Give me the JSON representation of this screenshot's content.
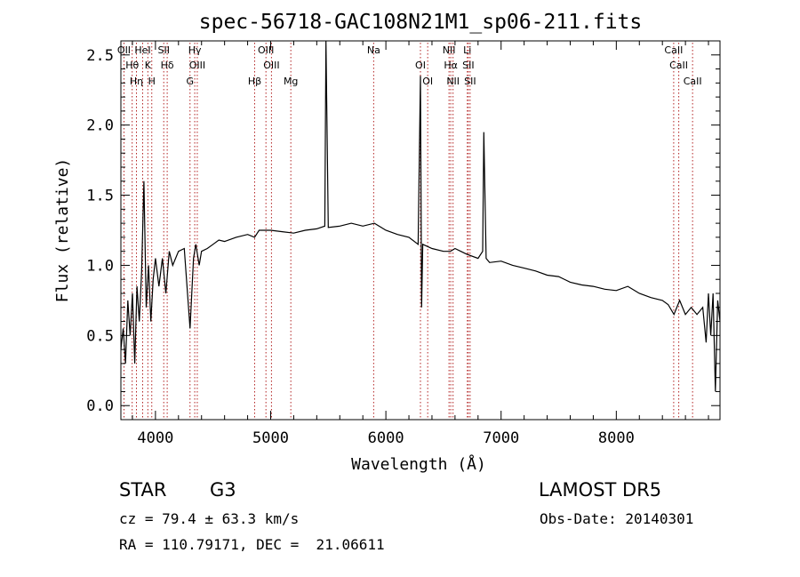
{
  "chart_data": {
    "type": "line",
    "title": "spec-56718-GAC108N21M1_sp06-211.fits",
    "xlabel": "Wavelength (Å)",
    "ylabel": "Flux (relative)",
    "xlim": [
      3700,
      8900
    ],
    "ylim": [
      -0.1,
      2.6
    ],
    "x_ticks": [
      4000,
      5000,
      6000,
      7000,
      8000
    ],
    "x_tick_labels": [
      "4000",
      "5000",
      "6000",
      "7000",
      "8000"
    ],
    "y_ticks": [
      0.0,
      0.5,
      1.0,
      1.5,
      2.0,
      2.5
    ],
    "y_tick_labels": [
      "0.0",
      "0.5",
      "1.0",
      "1.5",
      "2.0",
      "2.5"
    ],
    "grid": false,
    "line_color": "#000000",
    "marker_color": "#b22222",
    "series": [
      {
        "x": [
          3700,
          3720,
          3740,
          3760,
          3780,
          3800,
          3820,
          3840,
          3860,
          3880,
          3900,
          3920,
          3940,
          3960,
          3980,
          4000,
          4030,
          4060,
          4090,
          4120,
          4150,
          4200,
          4250,
          4300,
          4330,
          4350,
          4380,
          4400,
          4450,
          4500,
          4550,
          4600,
          4700,
          4800,
          4860,
          4900,
          5000,
          5100,
          5200,
          5300,
          5400,
          5470,
          5480,
          5500,
          5600,
          5700,
          5800,
          5900,
          6000,
          6100,
          6200,
          6280,
          6300,
          6310,
          6320,
          6400,
          6500,
          6560,
          6600,
          6650,
          6700,
          6800,
          6840,
          6850,
          6870,
          6900,
          7000,
          7100,
          7200,
          7300,
          7400,
          7500,
          7600,
          7700,
          7800,
          7900,
          8000,
          8100,
          8200,
          8300,
          8400,
          8450,
          8500,
          8550,
          8600,
          8650,
          8700,
          8750,
          8780,
          8800,
          8820,
          8840,
          8860,
          8880,
          8900
        ],
        "y": [
          0.4,
          0.55,
          0.3,
          0.75,
          0.5,
          0.8,
          0.3,
          0.85,
          0.6,
          0.95,
          1.6,
          0.7,
          1.0,
          0.6,
          0.9,
          1.05,
          0.85,
          1.05,
          0.8,
          1.1,
          1.0,
          1.1,
          1.12,
          0.55,
          1.05,
          1.15,
          1.0,
          1.1,
          1.12,
          1.15,
          1.18,
          1.17,
          1.2,
          1.22,
          1.2,
          1.25,
          1.25,
          1.24,
          1.23,
          1.25,
          1.26,
          1.28,
          2.6,
          1.27,
          1.28,
          1.3,
          1.28,
          1.3,
          1.25,
          1.22,
          1.2,
          1.15,
          2.35,
          0.7,
          1.15,
          1.12,
          1.1,
          1.1,
          1.12,
          1.1,
          1.08,
          1.05,
          1.1,
          1.95,
          1.05,
          1.02,
          1.03,
          1.0,
          0.98,
          0.96,
          0.93,
          0.92,
          0.88,
          0.86,
          0.85,
          0.83,
          0.82,
          0.85,
          0.8,
          0.77,
          0.75,
          0.72,
          0.65,
          0.75,
          0.65,
          0.7,
          0.65,
          0.7,
          0.45,
          0.8,
          0.5,
          0.8,
          0.1,
          0.75,
          0.6
        ]
      }
    ],
    "line_markers": [
      {
        "x": 3727,
        "label": "OII"
      },
      {
        "x": 3798,
        "label": "Hθ"
      },
      {
        "x": 3835,
        "label": "Hη"
      },
      {
        "x": 3889,
        "label": "HeI"
      },
      {
        "x": 3934,
        "label": "K"
      },
      {
        "x": 3968,
        "label": "H"
      },
      {
        "x": 4072,
        "label": "SII"
      },
      {
        "x": 4102,
        "label": "Hδ"
      },
      {
        "x": 4300,
        "label": "G"
      },
      {
        "x": 4341,
        "label": "Hγ"
      },
      {
        "x": 4363,
        "label": "OIII"
      },
      {
        "x": 4861,
        "label": "Hβ"
      },
      {
        "x": 4959,
        "label": "OIII"
      },
      {
        "x": 5007,
        "label": "OIII"
      },
      {
        "x": 5175,
        "label": "Mg"
      },
      {
        "x": 5894,
        "label": "Na"
      },
      {
        "x": 6300,
        "label": "OI"
      },
      {
        "x": 6363,
        "label": "OI"
      },
      {
        "x": 6548,
        "label": "NII"
      },
      {
        "x": 6563,
        "label": "Hα"
      },
      {
        "x": 6583,
        "label": "NII"
      },
      {
        "x": 6707,
        "label": "Li"
      },
      {
        "x": 6716,
        "label": "SII"
      },
      {
        "x": 6731,
        "label": "SII"
      },
      {
        "x": 8498,
        "label": "CaII"
      },
      {
        "x": 8542,
        "label": "CaII"
      },
      {
        "x": 8662,
        "label": "CaII"
      }
    ]
  },
  "info": {
    "object_class": "STAR",
    "subclass": "G3",
    "survey": "LAMOST DR5",
    "redshift": "cz = 79.4 ± 63.3 km/s",
    "obs_date": "Obs-Date: 20140301",
    "coords": "RA = 110.79171, DEC =  21.06611"
  }
}
